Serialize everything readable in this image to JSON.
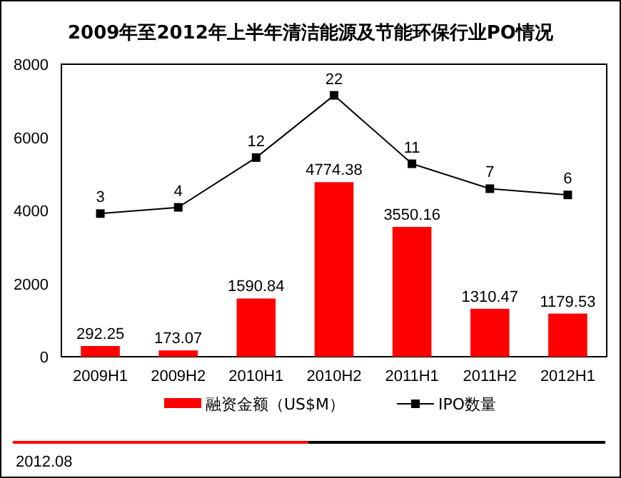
{
  "chart_data": {
    "type": "bar",
    "title": "2009年至2012年上半年清洁能源及节能环保行业PO情况",
    "categories": [
      "2009H1",
      "2009H2",
      "2010H1",
      "2010H2",
      "2011H1",
      "2011H2",
      "2012H1"
    ],
    "series": [
      {
        "name": "融资金额（US$M）",
        "color": "#ff0000",
        "values": [
          292.25,
          173.07,
          1590.84,
          4774.38,
          3550.16,
          1310.47,
          1179.53
        ]
      },
      {
        "name": "IPO数量",
        "type": "line",
        "axis": "y2",
        "color": "#000000",
        "marker": "square",
        "values": [
          3,
          4,
          12,
          22,
          11,
          7,
          6
        ]
      }
    ],
    "ylim": [
      0,
      8000
    ],
    "yticks": [
      0,
      2000,
      4000,
      6000,
      8000
    ],
    "y2lim": [
      -20,
      27
    ],
    "data_labels": true,
    "legend": "bottom",
    "grid": false,
    "annotations": [
      "2012.08"
    ]
  }
}
